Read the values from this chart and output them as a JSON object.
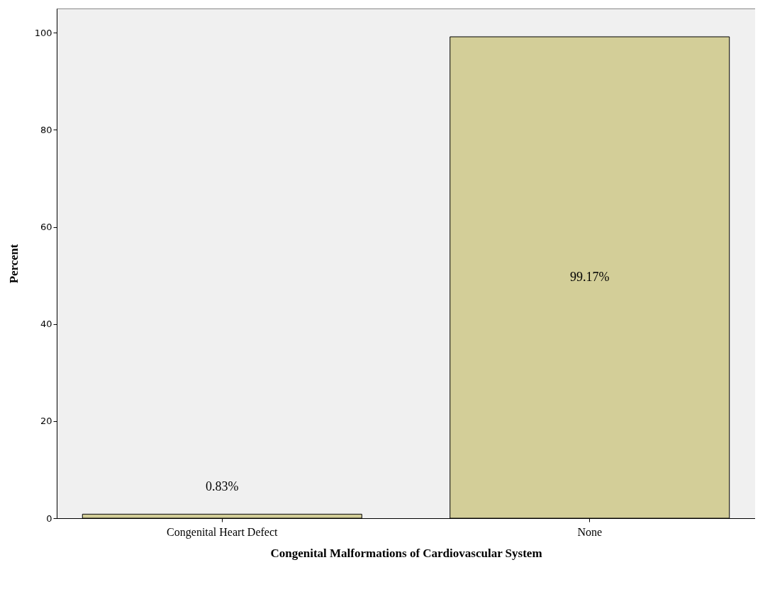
{
  "chart_data": {
    "type": "bar",
    "xlabel": "Congenital Malformations of Cardiovascular System",
    "ylabel": "Percent",
    "categories": [
      "Congenital Heart Defect",
      "None"
    ],
    "values": [
      0.83,
      99.17
    ],
    "value_labels": [
      "0.83%",
      "99.17%"
    ],
    "color": "#d3ce98",
    "ylim": [
      0,
      105
    ],
    "yticks": [
      0,
      20,
      40,
      60,
      80,
      100
    ],
    "grid": false
  }
}
